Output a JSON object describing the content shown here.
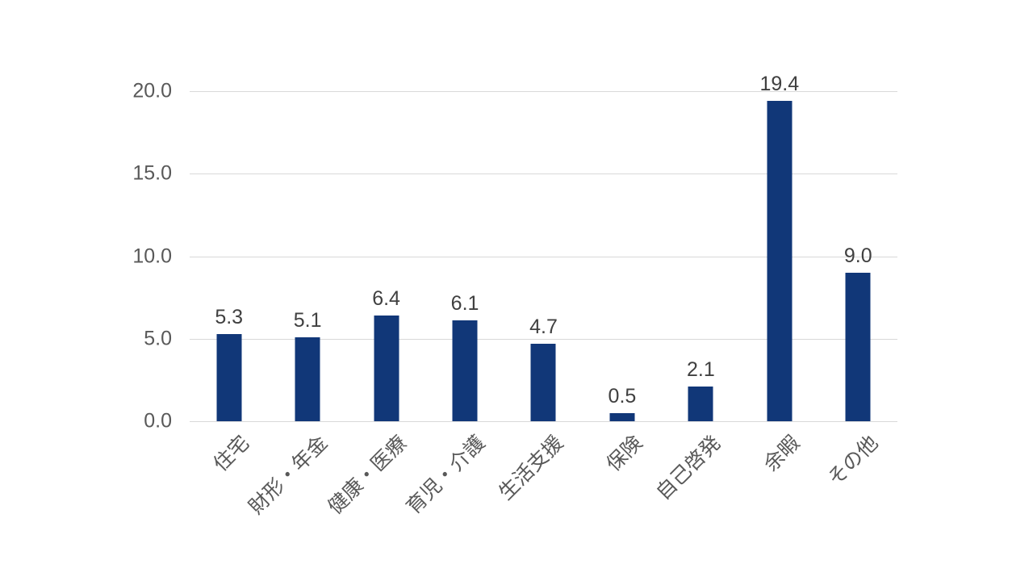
{
  "chart_data": {
    "type": "bar",
    "categories": [
      "住宅",
      "財形・年金",
      "健康・医療",
      "育児・介護",
      "生活支援",
      "保険",
      "自己啓発",
      "余暇",
      "その他"
    ],
    "values": [
      5.3,
      5.1,
      6.4,
      6.1,
      4.7,
      0.5,
      2.1,
      19.4,
      9.0
    ],
    "value_labels": [
      "5.3",
      "5.1",
      "6.4",
      "6.1",
      "4.7",
      "0.5",
      "2.1",
      "19.4",
      "9.0"
    ],
    "y_ticks": [
      "20.0",
      "15.0",
      "10.0",
      "5.0",
      "0.0"
    ],
    "ylim": [
      0,
      20
    ],
    "grid": true,
    "legend_position": "none",
    "x_label_rotation_deg": 45,
    "colors": {
      "bar": "#113778",
      "gridline": "#d9d9d9",
      "axis_label": "#595959",
      "value_label": "#404040",
      "background": "#ffffff"
    }
  }
}
